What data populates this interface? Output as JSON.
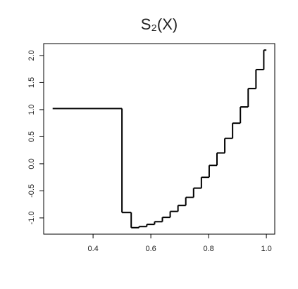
{
  "chart_data": {
    "type": "step",
    "title": "S₂(X)",
    "x": [
      0.26,
      0.5,
      0.532,
      0.559,
      0.586,
      0.613,
      0.64,
      0.667,
      0.694,
      0.721,
      0.748,
      0.775,
      0.802,
      0.829,
      0.856,
      0.883,
      0.91,
      0.937,
      0.964,
      0.991,
      1.0
    ],
    "values": [
      1.02,
      -0.9,
      -1.18,
      -1.16,
      -1.12,
      -1.07,
      -0.99,
      -0.88,
      -0.77,
      -0.62,
      -0.45,
      -0.25,
      -0.03,
      0.2,
      0.47,
      0.75,
      1.05,
      1.39,
      1.74,
      2.1,
      2.1
    ],
    "color": "#000000",
    "xlim": [
      0.229,
      1.029
    ],
    "ylim": [
      -1.3,
      2.22
    ],
    "xticks": [
      0.4,
      0.6,
      0.8,
      {
        "value": 1.0,
        "label": "1.0"
      }
    ],
    "yticks": [
      {
        "value": -1.0,
        "label": "-1.0"
      },
      -0.5,
      {
        "value": 0.0,
        "label": "0.0"
      },
      0.5,
      {
        "value": 1.0,
        "label": "1.0"
      },
      1.5,
      {
        "value": 2.0,
        "label": "2.0"
      }
    ]
  }
}
